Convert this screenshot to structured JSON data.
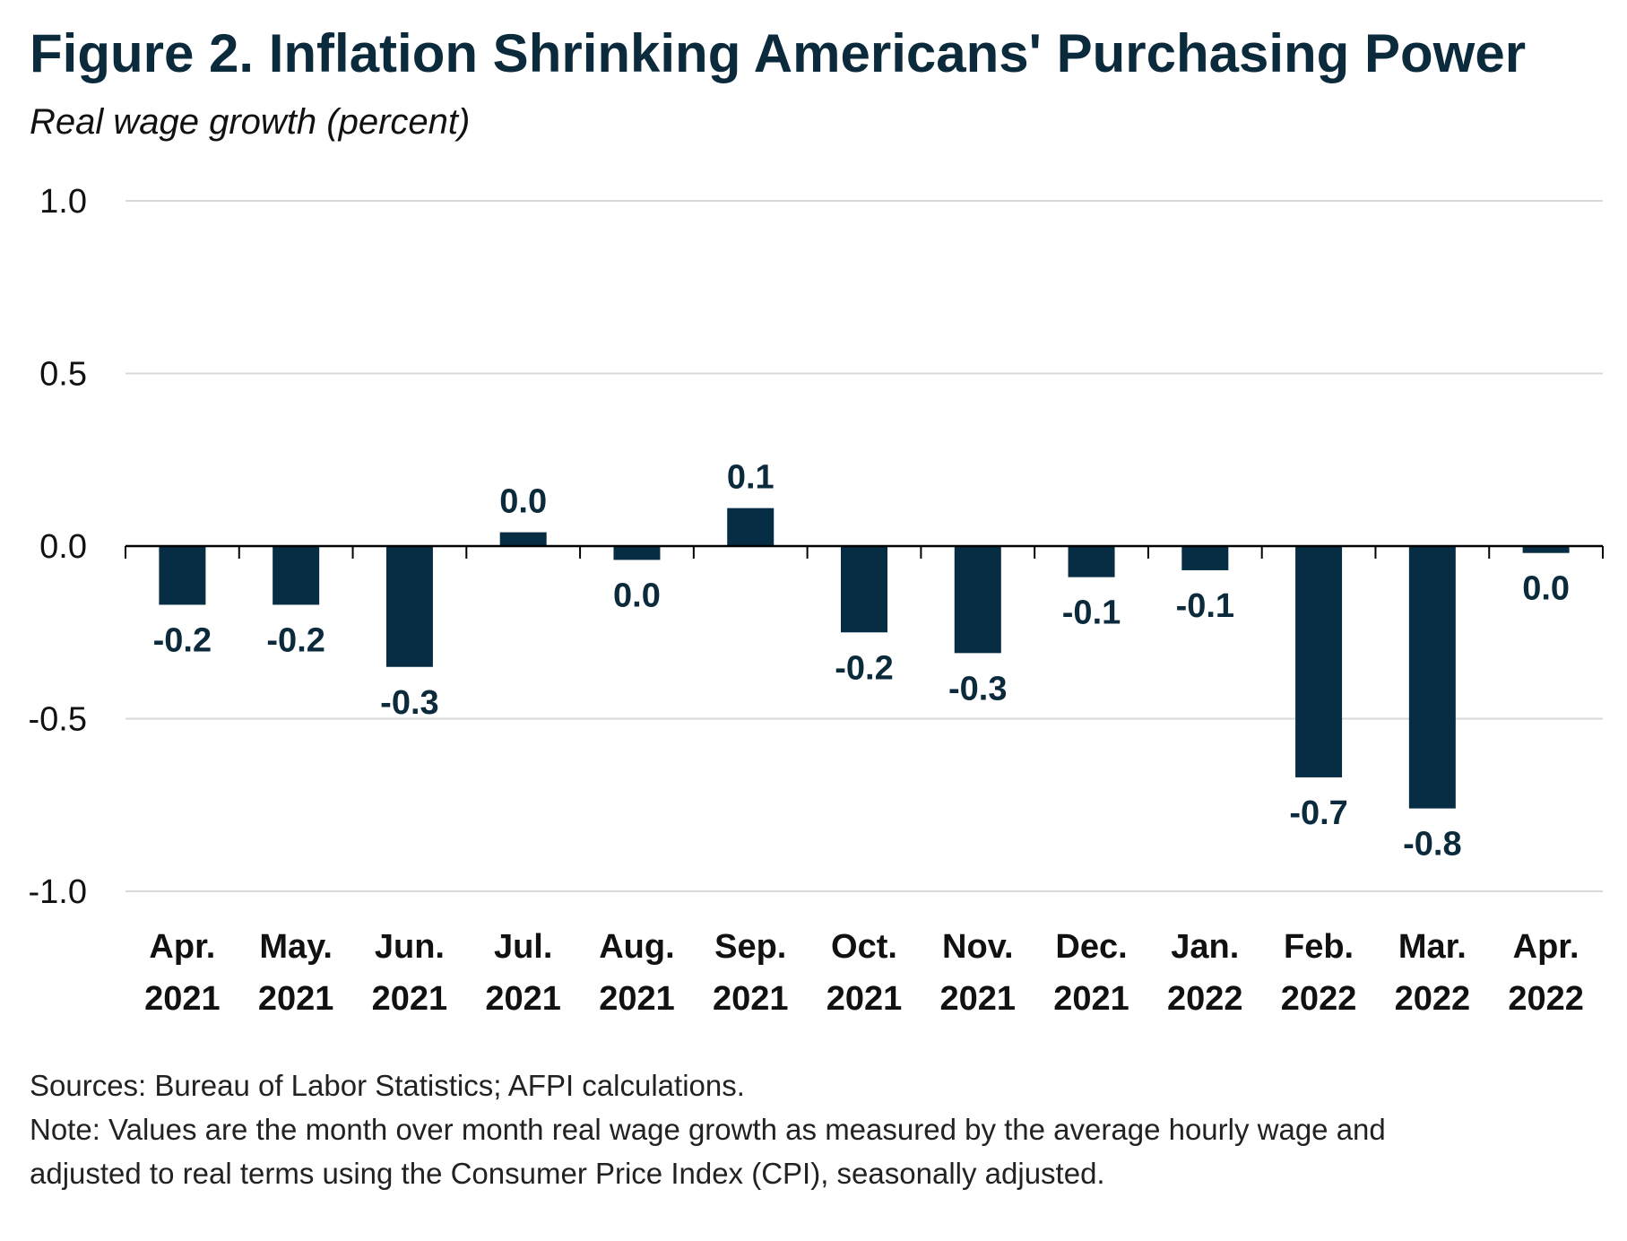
{
  "chart_data": {
    "type": "bar",
    "title": "Figure 2. Inflation Shrinking Americans' Purchasing Power",
    "subtitle": "Real wage growth (percent)",
    "xlabel": "",
    "ylabel": "",
    "ylim": [
      -1.0,
      1.0
    ],
    "yticks": [
      "1.0",
      "0.5",
      "0.0",
      "-0.5",
      "-1.0"
    ],
    "categories": [
      [
        "Apr.",
        "2021"
      ],
      [
        "May.",
        "2021"
      ],
      [
        "Jun.",
        "2021"
      ],
      [
        "Jul.",
        "2021"
      ],
      [
        "Aug.",
        "2021"
      ],
      [
        "Sep.",
        "2021"
      ],
      [
        "Oct.",
        "2021"
      ],
      [
        "Nov.",
        "2021"
      ],
      [
        "Dec.",
        "2021"
      ],
      [
        "Jan.",
        "2022"
      ],
      [
        "Feb.",
        "2022"
      ],
      [
        "Mar.",
        "2022"
      ],
      [
        "Apr.",
        "2022"
      ]
    ],
    "values": [
      -0.17,
      -0.17,
      -0.35,
      0.04,
      -0.04,
      0.11,
      -0.25,
      -0.31,
      -0.09,
      -0.07,
      -0.67,
      -0.76,
      -0.02
    ],
    "data_labels": [
      "-0.2",
      "-0.2",
      "-0.3",
      "0.0",
      "0.0",
      "0.1",
      "-0.2",
      "-0.3",
      "-0.1",
      "-0.1",
      "-0.7",
      "-0.8",
      "0.0"
    ],
    "grid": true,
    "legend": "none",
    "colors": {
      "bar": "#062d43",
      "grid": "#d9d9d9",
      "axis": "#000000",
      "text": "#0b2a3c"
    }
  },
  "notes": {
    "sources": "Sources: Bureau of Labor Statistics; AFPI calculations.",
    "note_line1": "Note: Values are the month over month real wage growth as measured by the average hourly wage and",
    "note_line2": "adjusted to real terms using the Consumer Price Index (CPI), seasonally adjusted."
  }
}
